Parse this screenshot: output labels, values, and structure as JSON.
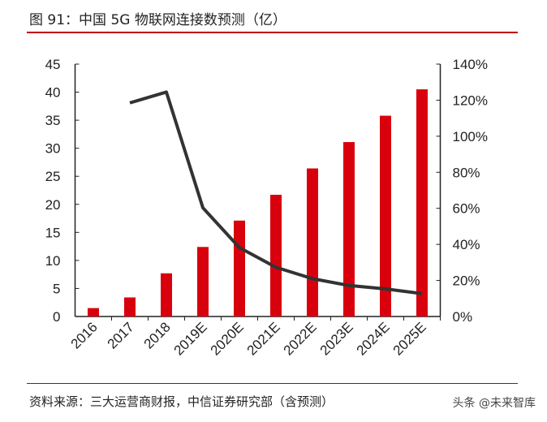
{
  "title": "图 91：中国 5G 物联网连接数预测（亿）",
  "source": "资料来源：三大运营商财报，中信证券研究部（含预测）",
  "watermark": "头条 @未来智库",
  "chart_data": {
    "type": "bar+line",
    "categories": [
      "2016",
      "2017",
      "2018",
      "2019E",
      "2020E",
      "2021E",
      "2022E",
      "2023E",
      "2024E",
      "2025E"
    ],
    "series": [
      {
        "type": "bar",
        "axis": "left",
        "color": "#d9000d",
        "values": [
          1.5,
          3.4,
          7.7,
          12.4,
          17.1,
          21.7,
          26.4,
          31.1,
          35.8,
          40.5
        ]
      },
      {
        "type": "line",
        "axis": "right",
        "color": "#333333",
        "values": [
          null,
          118.5,
          124.5,
          60.3,
          38.2,
          27.3,
          21.0,
          17.2,
          15.3,
          12.7
        ]
      }
    ],
    "ylim": [
      0,
      45
    ],
    "yticks": [
      "0",
      "5",
      "10",
      "15",
      "20",
      "25",
      "30",
      "35",
      "40",
      "45"
    ],
    "y2lim": [
      0,
      140
    ],
    "y2ticks": [
      "0%",
      "20%",
      "40%",
      "60%",
      "80%",
      "100%",
      "120%",
      "140%"
    ],
    "grid": false
  }
}
